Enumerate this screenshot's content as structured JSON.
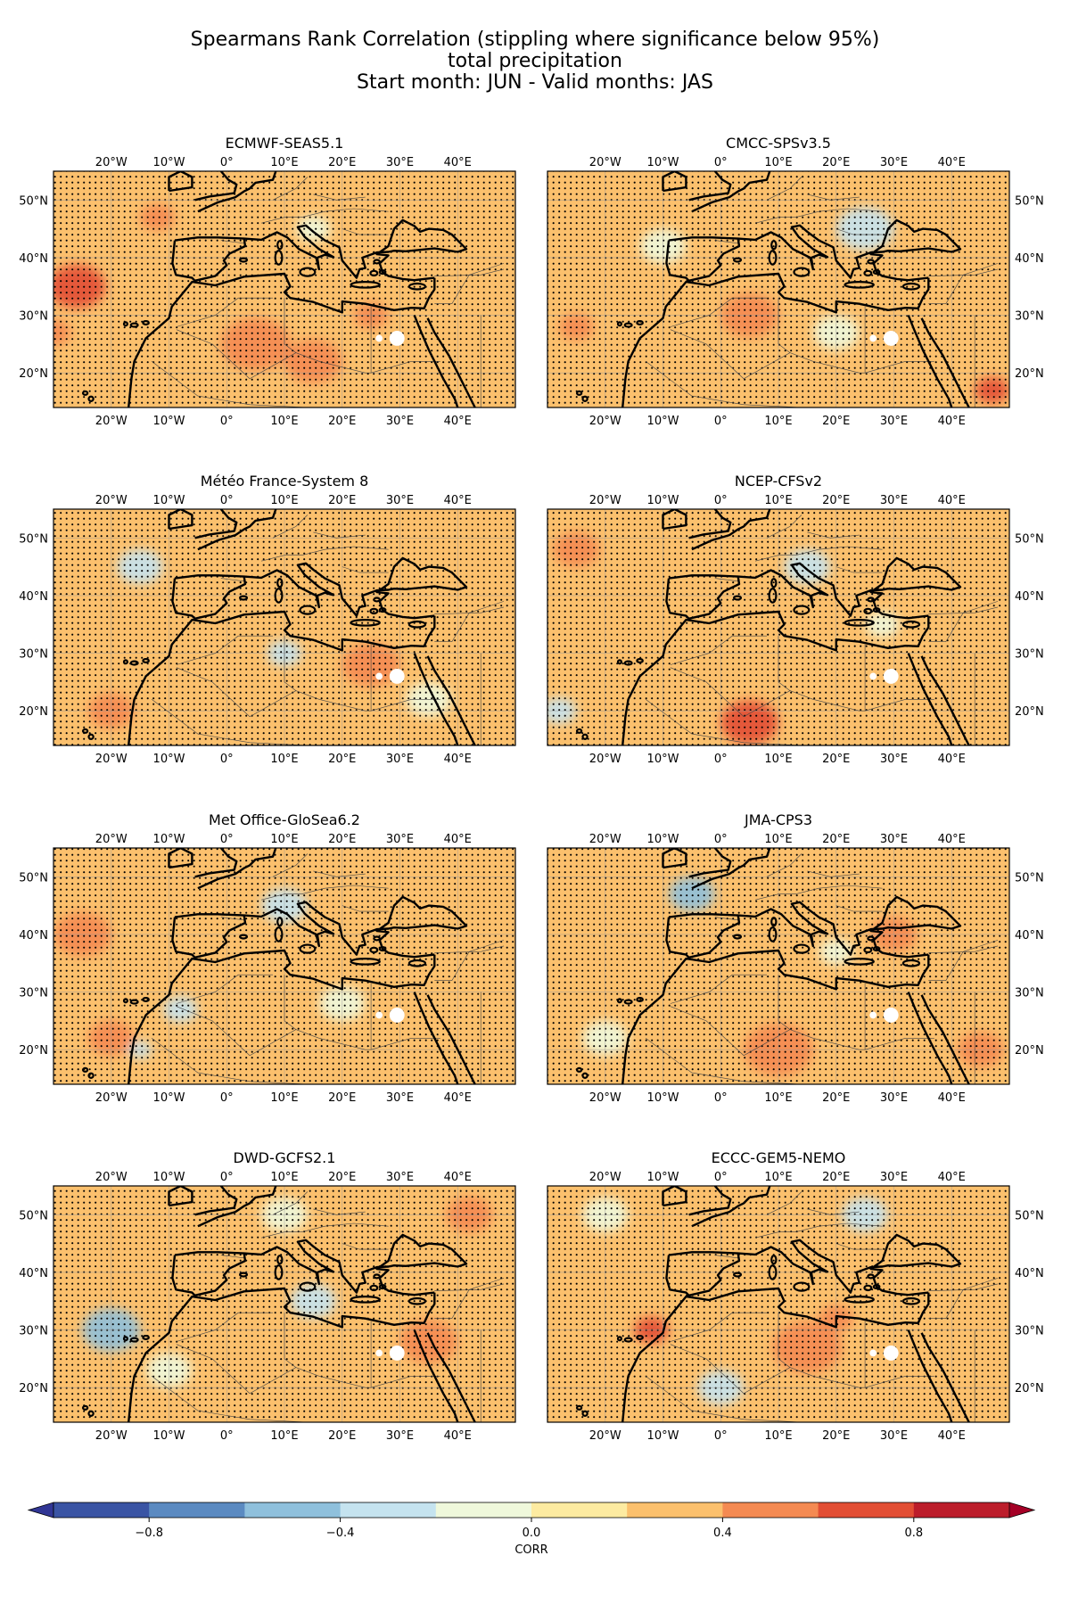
{
  "figure": {
    "title_lines": [
      "Spearmans Rank Correlation (stippling where significance below 95%)",
      "total precipitation",
      "Start month: JUN - Valid months: JAS"
    ]
  },
  "chart_data": {
    "type": "heatmap",
    "variable": "total precipitation",
    "metric": "Spearmans Rank Correlation",
    "stippling": "significance below 95%",
    "start_month": "JUN",
    "valid_months": "JAS",
    "x_ticks": [
      "20°W",
      "10°W",
      "0°",
      "10°E",
      "20°E",
      "30°E",
      "40°E"
    ],
    "x_tick_values": [
      -20,
      -10,
      0,
      10,
      20,
      30,
      40
    ],
    "y_ticks": [
      "50°N",
      "40°N",
      "30°N",
      "20°N"
    ],
    "y_tick_values": [
      50,
      40,
      30,
      20
    ],
    "xlim": [
      -30,
      50
    ],
    "ylim": [
      14,
      55
    ],
    "panels": [
      {
        "name": "ECMWF-SEAS5.1",
        "ylabels_side": "left",
        "dominant_corr": 0.3,
        "highlights": [
          {
            "lon": -26,
            "lat": 35,
            "corr": 0.6,
            "r": 5
          },
          {
            "lon": 5,
            "lat": 25,
            "corr": 0.5,
            "r": 6
          },
          {
            "lon": 15,
            "lat": 22,
            "corr": 0.5,
            "r": 5
          },
          {
            "lon": -12,
            "lat": 47,
            "corr": 0.5,
            "r": 3
          },
          {
            "lon": 25,
            "lat": 30,
            "corr": 0.5,
            "r": 3
          },
          {
            "lon": -30,
            "lat": 27,
            "corr": 0.5,
            "r": 3
          },
          {
            "lon": 15,
            "lat": 45,
            "corr": -0.1,
            "r": 3
          }
        ]
      },
      {
        "name": "CMCC-SPSv3.5",
        "ylabels_side": "right",
        "dominant_corr": 0.2,
        "highlights": [
          {
            "lon": 25,
            "lat": 45,
            "corr": -0.3,
            "r": 5
          },
          {
            "lon": -10,
            "lat": 42,
            "corr": -0.2,
            "r": 4
          },
          {
            "lon": 47,
            "lat": 17,
            "corr": 0.7,
            "r": 3
          },
          {
            "lon": 5,
            "lat": 30,
            "corr": 0.5,
            "r": 5
          },
          {
            "lon": -25,
            "lat": 28,
            "corr": 0.5,
            "r": 3
          },
          {
            "lon": 20,
            "lat": 27,
            "corr": -0.2,
            "r": 4
          }
        ]
      },
      {
        "name": "Météo France-System 8",
        "ylabels_side": "left",
        "dominant_corr": 0.3,
        "highlights": [
          {
            "lon": -15,
            "lat": 45,
            "corr": -0.3,
            "r": 4
          },
          {
            "lon": 10,
            "lat": 30,
            "corr": -0.3,
            "r": 3
          },
          {
            "lon": 25,
            "lat": 28,
            "corr": 0.5,
            "r": 5
          },
          {
            "lon": -20,
            "lat": 20,
            "corr": 0.4,
            "r": 4
          },
          {
            "lon": 35,
            "lat": 22,
            "corr": -0.2,
            "r": 4
          }
        ]
      },
      {
        "name": "NCEP-CFSv2",
        "ylabels_side": "right",
        "dominant_corr": 0.3,
        "highlights": [
          {
            "lon": 5,
            "lat": 18,
            "corr": 0.6,
            "r": 5
          },
          {
            "lon": 15,
            "lat": 45,
            "corr": -0.3,
            "r": 4
          },
          {
            "lon": -28,
            "lat": 20,
            "corr": -0.4,
            "r": 3
          },
          {
            "lon": -25,
            "lat": 48,
            "corr": 0.5,
            "r": 4
          },
          {
            "lon": 28,
            "lat": 35,
            "corr": -0.1,
            "r": 3
          }
        ]
      },
      {
        "name": "Met Office-GloSea6.2",
        "ylabels_side": "left",
        "dominant_corr": 0.3,
        "highlights": [
          {
            "lon": -25,
            "lat": 40,
            "corr": 0.5,
            "r": 5
          },
          {
            "lon": 10,
            "lat": 45,
            "corr": -0.3,
            "r": 4
          },
          {
            "lon": -8,
            "lat": 27,
            "corr": -0.3,
            "r": 3
          },
          {
            "lon": -15,
            "lat": 20,
            "corr": -0.4,
            "r": 2
          },
          {
            "lon": 20,
            "lat": 28,
            "corr": -0.2,
            "r": 4
          },
          {
            "lon": -20,
            "lat": 22,
            "corr": 0.4,
            "r": 4
          }
        ]
      },
      {
        "name": "JMA-CPS3",
        "ylabels_side": "right",
        "dominant_corr": 0.3,
        "highlights": [
          {
            "lon": -5,
            "lat": 47,
            "corr": -0.5,
            "r": 4
          },
          {
            "lon": 10,
            "lat": 20,
            "corr": 0.5,
            "r": 6
          },
          {
            "lon": 30,
            "lat": 40,
            "corr": 0.5,
            "r": 4
          },
          {
            "lon": -20,
            "lat": 22,
            "corr": -0.2,
            "r": 4
          },
          {
            "lon": 45,
            "lat": 20,
            "corr": 0.5,
            "r": 4
          },
          {
            "lon": 20,
            "lat": 37,
            "corr": -0.2,
            "r": 3
          }
        ]
      },
      {
        "name": "DWD-GCFS2.1",
        "ylabels_side": "left",
        "dominant_corr": 0.3,
        "highlights": [
          {
            "lon": -20,
            "lat": 30,
            "corr": -0.5,
            "r": 5
          },
          {
            "lon": 15,
            "lat": 35,
            "corr": -0.3,
            "r": 4
          },
          {
            "lon": 42,
            "lat": 50,
            "corr": 0.5,
            "r": 4
          },
          {
            "lon": 35,
            "lat": 28,
            "corr": 0.5,
            "r": 5
          },
          {
            "lon": -10,
            "lat": 23,
            "corr": -0.2,
            "r": 4
          },
          {
            "lon": 10,
            "lat": 50,
            "corr": -0.1,
            "r": 4
          }
        ]
      },
      {
        "name": "ECCC-GEM5-NEMO",
        "ylabels_side": "right",
        "dominant_corr": 0.3,
        "highlights": [
          {
            "lon": -12,
            "lat": 30,
            "corr": 0.6,
            "r": 3
          },
          {
            "lon": 15,
            "lat": 27,
            "corr": 0.5,
            "r": 6
          },
          {
            "lon": 25,
            "lat": 50,
            "corr": -0.3,
            "r": 4
          },
          {
            "lon": -20,
            "lat": 50,
            "corr": -0.2,
            "r": 4
          },
          {
            "lon": 0,
            "lat": 20,
            "corr": -0.3,
            "r": 4
          },
          {
            "lon": 20,
            "lat": 32,
            "corr": 0.5,
            "r": 3
          }
        ]
      }
    ],
    "colorbar": {
      "label": "CORR",
      "bounds": [
        -1.0,
        -0.8,
        -0.6,
        -0.4,
        -0.2,
        0.0,
        0.2,
        0.4,
        0.6,
        0.8,
        1.0
      ],
      "tick_values": [
        -0.8,
        -0.4,
        0.0,
        0.4,
        0.8
      ],
      "tick_labels": [
        "−0.8",
        "−0.4",
        "0.0",
        "0.4",
        "0.8"
      ],
      "extend": "both",
      "colors": [
        "#3a54a4",
        "#5b8ac1",
        "#8fc0dc",
        "#c5e3ef",
        "#eff8db",
        "#fdeba1",
        "#fbc06d",
        "#f48a52",
        "#e24e34",
        "#bc1d2b"
      ],
      "under_color": "#313695",
      "over_color": "#a50026"
    }
  }
}
